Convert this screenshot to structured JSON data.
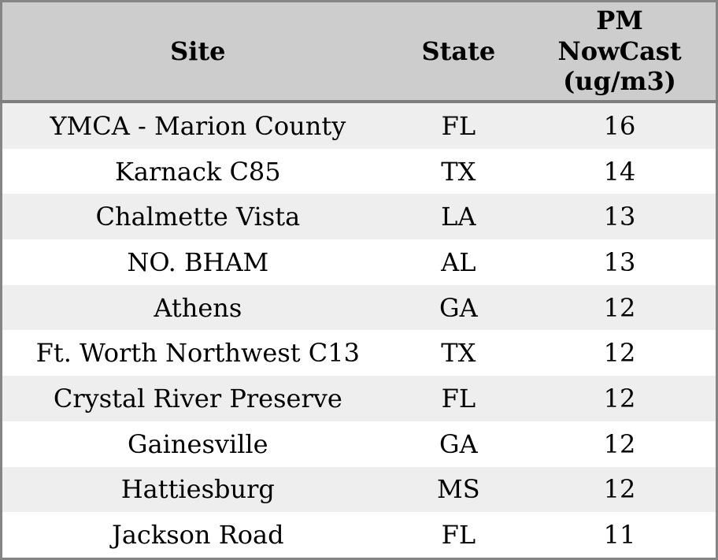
{
  "colors": {
    "header_bg": "#cdcdcd",
    "row_alt_bg": "#eeeeee",
    "row_bg": "#ffffff",
    "border": "#858585",
    "header_border": "#7e7e7e",
    "text": "#000000"
  },
  "table": {
    "columns": {
      "site": "Site",
      "state": "State",
      "pm": "PM NowCast (ug/m3)"
    },
    "pm_header_lines": [
      "PM",
      "NowCast",
      "(ug/m3)"
    ],
    "rows": [
      {
        "site": "YMCA - Marion County",
        "state": "FL",
        "pm": "16"
      },
      {
        "site": "Karnack C85",
        "state": "TX",
        "pm": "14"
      },
      {
        "site": "Chalmette Vista",
        "state": "LA",
        "pm": "13"
      },
      {
        "site": "NO. BHAM",
        "state": "AL",
        "pm": "13"
      },
      {
        "site": "Athens",
        "state": "GA",
        "pm": "12"
      },
      {
        "site": "Ft. Worth Northwest C13",
        "state": "TX",
        "pm": "12"
      },
      {
        "site": "Crystal River Preserve",
        "state": "FL",
        "pm": "12"
      },
      {
        "site": "Gainesville",
        "state": "GA",
        "pm": "12"
      },
      {
        "site": "Hattiesburg",
        "state": "MS",
        "pm": "12"
      },
      {
        "site": "Jackson Road",
        "state": "FL",
        "pm": "11"
      }
    ]
  },
  "chart_data": {
    "type": "table",
    "title": "",
    "columns": [
      "Site",
      "State",
      "PM NowCast (ug/m3)"
    ],
    "rows": [
      [
        "YMCA - Marion County",
        "FL",
        16
      ],
      [
        "Karnack C85",
        "TX",
        14
      ],
      [
        "Chalmette Vista",
        "LA",
        13
      ],
      [
        "NO. BHAM",
        "AL",
        13
      ],
      [
        "Athens",
        "GA",
        12
      ],
      [
        "Ft. Worth Northwest C13",
        "TX",
        12
      ],
      [
        "Crystal River Preserve",
        "FL",
        12
      ],
      [
        "Gainesville",
        "GA",
        12
      ],
      [
        "Hattiesburg",
        "MS",
        12
      ],
      [
        "Jackson Road",
        "FL",
        11
      ]
    ]
  }
}
